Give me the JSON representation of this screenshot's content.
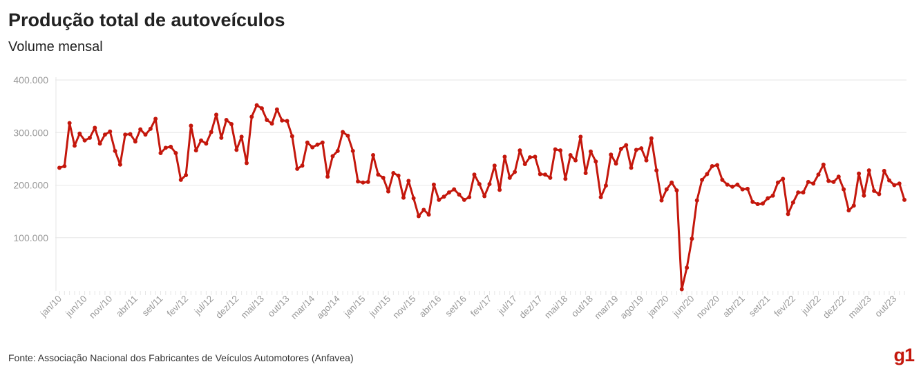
{
  "title": "Produção total de autoveículos",
  "subtitle": "Volume mensal",
  "source": "Fonte: Associação Nacional dos Fabricantes de Veículos Automotores (Anfavea)",
  "logo": "g1",
  "colors": {
    "line": "#c4170c",
    "grid": "#e6e6e6",
    "axis_text": "#999999",
    "title": "#222222",
    "logo": "#c4170c"
  },
  "chart_data": {
    "type": "line",
    "title": "Produção total de autoveículos",
    "subtitle": "Volume mensal",
    "x_start": "jan/10",
    "x_end": "dez/23",
    "ylim": [
      0,
      400000
    ],
    "yticks": [
      100000,
      200000,
      300000,
      400000
    ],
    "ytick_labels": [
      "100.000",
      "200.000",
      "300.000",
      "400.000"
    ],
    "grid": true,
    "x_tick_labels": [
      "jan/10",
      "jun/10",
      "nov/10",
      "abr/11",
      "set/11",
      "fev/12",
      "jul/12",
      "dez/12",
      "mai/13",
      "out/13",
      "mar/14",
      "ago/14",
      "jan/15",
      "jun/15",
      "nov/15",
      "abr/16",
      "set/16",
      "fev/17",
      "jul/17",
      "dez/17",
      "mai/18",
      "out/18",
      "mar/19",
      "ago/19",
      "jan/20",
      "jun/20",
      "nov/20",
      "abr/21",
      "set/21",
      "fev/22",
      "jul/22",
      "dez/22",
      "mai/23",
      "out/23"
    ],
    "series": [
      {
        "values": [
          233000,
          236000,
          318000,
          275000,
          298000,
          285000,
          290000,
          309000,
          279000,
          296000,
          302000,
          265000,
          239000,
          296000,
          297000,
          283000,
          306000,
          296000,
          307000,
          326000,
          261000,
          271000,
          273000,
          261000,
          210000,
          219000,
          313000,
          266000,
          285000,
          279000,
          301000,
          334000,
          290000,
          324000,
          316000,
          267000,
          292000,
          242000,
          330000,
          352000,
          346000,
          324000,
          317000,
          344000,
          323000,
          322000,
          293000,
          231000,
          237000,
          281000,
          272000,
          277000,
          281000,
          216000,
          255000,
          265000,
          301000,
          294000,
          265000,
          207000,
          205000,
          206000,
          257000,
          220000,
          214000,
          188000,
          223000,
          218000,
          176000,
          208000,
          175000,
          141000,
          153000,
          144000,
          201000,
          172000,
          178000,
          186000,
          192000,
          182000,
          172000,
          177000,
          220000,
          202000,
          179000,
          202000,
          237000,
          191000,
          254000,
          214000,
          225000,
          266000,
          240000,
          253000,
          254000,
          221000,
          220000,
          214000,
          268000,
          266000,
          212000,
          257000,
          247000,
          292000,
          223000,
          264000,
          245000,
          177000,
          199000,
          258000,
          241000,
          269000,
          276000,
          233000,
          267000,
          270000,
          247000,
          289000,
          228000,
          171000,
          192000,
          205000,
          190000,
          2000,
          43000,
          98000,
          171000,
          210000,
          221000,
          236000,
          238000,
          210000,
          201000,
          197000,
          201000,
          192000,
          193000,
          168000,
          164000,
          165000,
          175000,
          180000,
          205000,
          212000,
          145000,
          167000,
          186000,
          186000,
          206000,
          203000,
          220000,
          239000,
          208000,
          206000,
          216000,
          192000,
          152000,
          161000,
          222000,
          180000,
          228000,
          189000,
          183000,
          227000,
          209000,
          200000,
          203000,
          172000
        ]
      }
    ]
  }
}
